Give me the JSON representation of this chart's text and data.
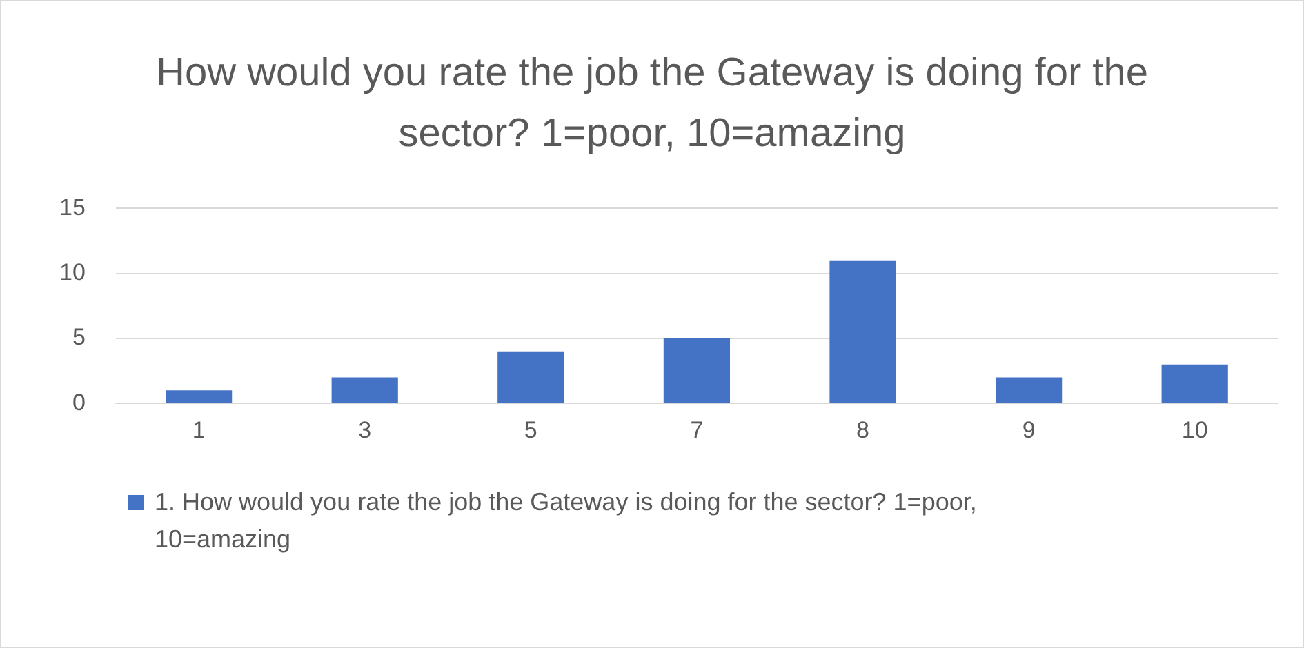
{
  "chart_data": {
    "type": "bar",
    "title": "How would you rate the job the Gateway is doing for the sector? 1=poor, 10=amazing",
    "categories": [
      "1",
      "3",
      "5",
      "7",
      "8",
      "9",
      "10"
    ],
    "series": [
      {
        "name": "1. How would you rate the job the Gateway is doing for the sector? 1=poor, 10=amazing",
        "color": "#4472c4",
        "values": [
          1,
          2,
          4,
          5,
          11,
          2,
          3
        ]
      }
    ],
    "ylim": [
      0,
      15
    ],
    "yticks": [
      0,
      5,
      10,
      15
    ],
    "grid": "y",
    "legend": "bottom"
  }
}
